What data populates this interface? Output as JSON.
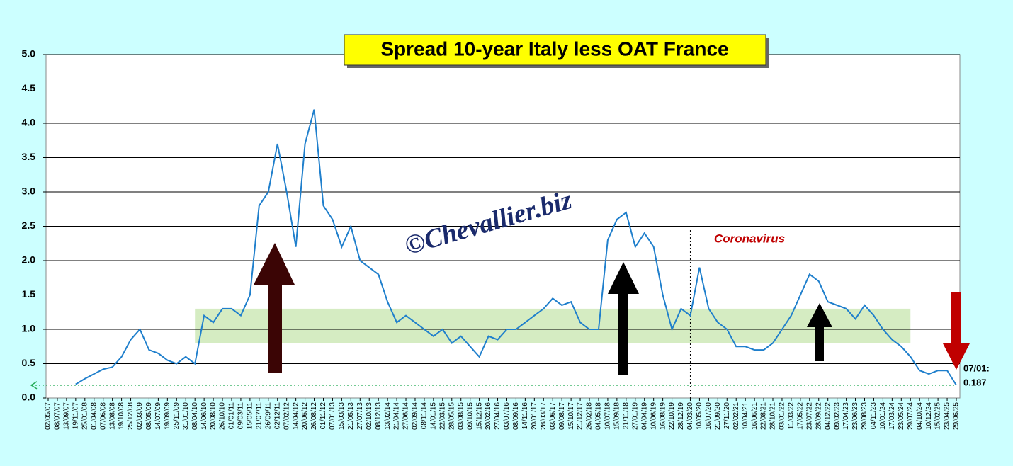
{
  "chart_data": {
    "type": "line",
    "title": "Spread 10-year Italy less OAT France",
    "categories": [
      "02/05/07",
      "08/07/07",
      "13/09/07",
      "19/11/07",
      "25/01/08",
      "01/04/08",
      "07/06/08",
      "13/08/08",
      "19/10/08",
      "25/12/08",
      "02/03/09",
      "08/05/09",
      "14/07/09",
      "19/09/09",
      "25/11/09",
      "31/01/10",
      "08/04/10",
      "14/06/10",
      "20/08/10",
      "26/10/10",
      "01/01/11",
      "09/03/11",
      "15/05/11",
      "21/07/11",
      "26/09/11",
      "02/12/11",
      "07/02/12",
      "14/04/12",
      "20/06/12",
      "26/08/12",
      "01/11/12",
      "07/01/13",
      "15/03/13",
      "21/05/13",
      "27/07/13",
      "02/10/13",
      "08/12/13",
      "13/02/14",
      "21/04/14",
      "27/06/14",
      "02/09/14",
      "08/11/14",
      "14/01/15",
      "22/03/15",
      "28/05/15",
      "03/08/15",
      "09/10/15",
      "15/12/15",
      "20/02/16",
      "27/04/16",
      "03/07/16",
      "08/09/16",
      "14/11/16",
      "20/01/17",
      "28/03/17",
      "03/06/17",
      "09/08/17",
      "15/10/17",
      "21/12/17",
      "26/02/18",
      "04/05/18",
      "10/07/18",
      "15/09/18",
      "21/11/18",
      "27/01/19",
      "04/04/19",
      "10/06/19",
      "16/08/19",
      "22/10/19",
      "28/12/19",
      "04/03/20",
      "10/05/20",
      "16/07/20",
      "21/09/20",
      "27/11/20",
      "02/02/21",
      "10/04/21",
      "16/06/21",
      "22/08/21",
      "28/10/21",
      "03/01/22",
      "11/03/22",
      "17/05/22",
      "23/07/22",
      "28/09/22",
      "04/12/22",
      "09/02/23",
      "17/04/23",
      "23/06/23",
      "29/08/23",
      "04/11/23",
      "10/01/24",
      "17/03/24",
      "23/05/24",
      "29/07/24",
      "04/10/24",
      "10/12/24",
      "15/02/25",
      "23/04/25",
      "29/06/25"
    ],
    "values": [
      null,
      null,
      null,
      0.2,
      0.28,
      0.35,
      0.42,
      0.45,
      0.6,
      0.85,
      1.0,
      0.7,
      0.65,
      0.55,
      0.5,
      0.6,
      0.5,
      1.2,
      1.1,
      1.3,
      1.3,
      1.2,
      1.5,
      2.8,
      3.0,
      3.7,
      3.0,
      2.2,
      3.7,
      4.2,
      2.8,
      2.6,
      2.2,
      2.5,
      2.0,
      1.9,
      1.8,
      1.4,
      1.1,
      1.2,
      1.1,
      1.0,
      0.9,
      1.0,
      0.8,
      0.9,
      0.75,
      0.6,
      0.9,
      0.85,
      1.0,
      1.0,
      1.1,
      1.2,
      1.3,
      1.45,
      1.35,
      1.4,
      1.1,
      1.0,
      1.0,
      2.3,
      2.6,
      2.7,
      2.2,
      2.4,
      2.2,
      1.5,
      1.0,
      1.3,
      1.2,
      1.9,
      1.3,
      1.1,
      1.0,
      0.75,
      0.75,
      0.7,
      0.7,
      0.8,
      1.0,
      1.2,
      1.5,
      1.8,
      1.7,
      1.4,
      1.35,
      1.3,
      1.15,
      1.35,
      1.2,
      1.0,
      0.85,
      0.75,
      0.6,
      0.4,
      0.35,
      0.4,
      0.4,
      0.187
    ],
    "color": "#1f7fcc",
    "last_label": "07/01:",
    "ylim": [
      0,
      5
    ],
    "yticks": [
      {
        "value": 0,
        "label": "0.0"
      },
      0.5,
      {
        "value": 1,
        "label": "1.0"
      },
      1.5,
      {
        "value": 2,
        "label": "2.0"
      },
      2.5,
      {
        "value": 3,
        "label": "3.0"
      },
      3.5,
      {
        "value": 4,
        "label": "4.0"
      },
      4.5,
      {
        "value": 5,
        "label": "5.0"
      }
    ],
    "grid": true,
    "band": {
      "y": [
        0.8,
        1.3
      ],
      "x": [
        "08/04/10",
        "29/07/24"
      ],
      "color": "#d5ecc2"
    },
    "annotations": {
      "event": "Coronavirus",
      "event_date": "04/03/20",
      "watermark": "©Chevallier.biz"
    }
  }
}
